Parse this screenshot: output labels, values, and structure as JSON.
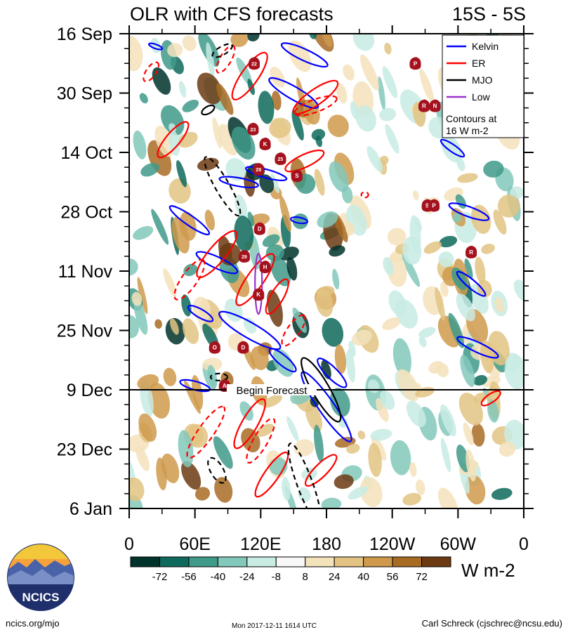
{
  "chart_data": {
    "type": "heatmap",
    "title": "OLR with CFS forecasts",
    "region": "15S - 5S",
    "y_ticks": [
      "16 Sep",
      "30 Sep",
      "14 Oct",
      "28 Oct",
      "11 Nov",
      "25 Nov",
      "9 Dec",
      "23 Dec",
      "6 Jan"
    ],
    "x_ticks": [
      "0",
      "60E",
      "120E",
      "180",
      "120W",
      "60W",
      "0"
    ],
    "x_lon": [
      0,
      60,
      120,
      180,
      240,
      300,
      360
    ],
    "y_day_start": 0,
    "y_day_end": 112,
    "forecast_start_day": 84,
    "forecast_label": "Begin Forecast",
    "legend": {
      "entries": [
        {
          "name": "Kelvin",
          "color": "#0000ff"
        },
        {
          "name": "ER",
          "color": "#ff0000"
        },
        {
          "name": "MJO",
          "color": "#000000"
        },
        {
          "name": "Low",
          "color": "#9933cc"
        }
      ],
      "note_line1": "Contours at",
      "note_line2": "16 W m-2",
      "placement": "top-right"
    },
    "colorbar": {
      "labels": [
        "-72",
        "-56",
        "-40",
        "-24",
        "-8",
        "8",
        "24",
        "40",
        "56",
        "72"
      ],
      "colors": [
        "#00332b",
        "#0e6a5c",
        "#3f9a8a",
        "#82c8bb",
        "#c8ebe4",
        "#f8f8f8",
        "#f4e2bb",
        "#e2c383",
        "#cf9a4c",
        "#a86b24",
        "#6b3a12"
      ],
      "units": "W m-2"
    },
    "storm_markers": [
      {
        "label": "22",
        "lon": 114,
        "day": 7
      },
      {
        "label": "23",
        "lon": 113,
        "day": 22.5
      },
      {
        "label": "K",
        "lon": 124,
        "day": 26
      },
      {
        "label": "28",
        "lon": 118,
        "day": 32
      },
      {
        "label": "25",
        "lon": 138,
        "day": 29.5
      },
      {
        "label": "S",
        "lon": 153,
        "day": 33.5
      },
      {
        "label": "D",
        "lon": 119,
        "day": 46
      },
      {
        "label": "29",
        "lon": 105,
        "day": 52.5
      },
      {
        "label": "H",
        "lon": 124,
        "day": 55
      },
      {
        "label": "K",
        "lon": 118,
        "day": 61.5
      },
      {
        "label": "O",
        "lon": 78,
        "day": 74
      },
      {
        "label": "D",
        "lon": 104,
        "day": 74
      },
      {
        "label": "A",
        "lon": 87,
        "day": 83
      },
      {
        "label": "P",
        "lon": 261,
        "day": 7
      },
      {
        "label": "R",
        "lon": 269,
        "day": 17
      },
      {
        "label": "N",
        "lon": 279,
        "day": 17
      },
      {
        "label": "S",
        "lon": 272,
        "day": 40.5
      },
      {
        "label": "P",
        "lon": 278,
        "day": 40.5
      },
      {
        "label": "R",
        "lon": 312,
        "day": 51.5
      }
    ],
    "logo_text": "NCICS",
    "grid": false
  },
  "footer": {
    "left": "ncics.org/mjo",
    "middle": "Mon 2017-12-11 1614 UTC",
    "right": "Carl Schreck (cjschrec@ncsu.edu)"
  }
}
